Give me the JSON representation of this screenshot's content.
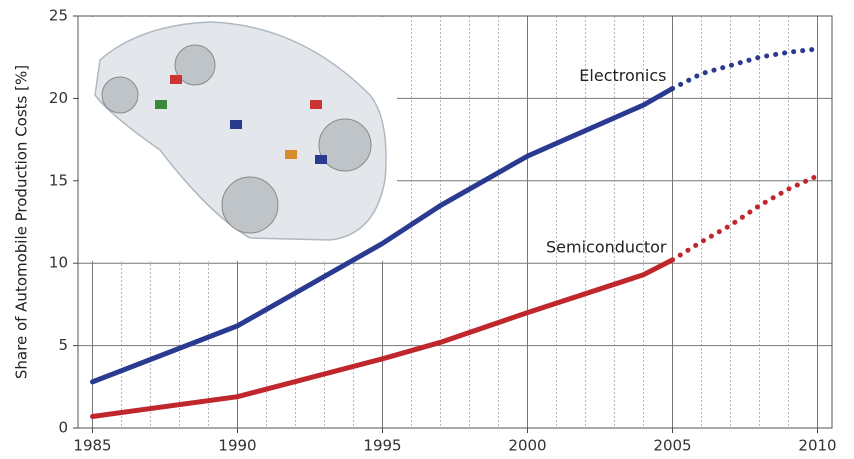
{
  "chart_data": {
    "type": "line",
    "y_label": "Share of Automobile Production Costs [%]",
    "x": [
      1985,
      1990,
      1995,
      1997,
      2000,
      2004,
      2005,
      2006,
      2007,
      2008,
      2009,
      2010
    ],
    "series": [
      {
        "name": "Electronics",
        "color": "#2a3a90",
        "values": [
          2.8,
          6.2,
          11.2,
          13.5,
          16.5,
          19.6,
          20.6,
          21.5,
          22.0,
          22.5,
          22.8,
          23.0
        ]
      },
      {
        "name": "Semiconductor",
        "color": "#c0272d",
        "values": [
          0.7,
          1.9,
          4.2,
          5.2,
          7.0,
          9.3,
          10.2,
          11.3,
          12.3,
          13.5,
          14.5,
          15.3
        ]
      }
    ],
    "forecast_start": 2005,
    "xlim": [
      1984.5,
      2010.5
    ],
    "xticks": [
      1985,
      1990,
      1995,
      2000,
      2005,
      2010
    ],
    "ylim": [
      0,
      25
    ],
    "yticks": [
      0,
      5,
      10,
      15,
      20,
      25
    ],
    "grid": true
  }
}
